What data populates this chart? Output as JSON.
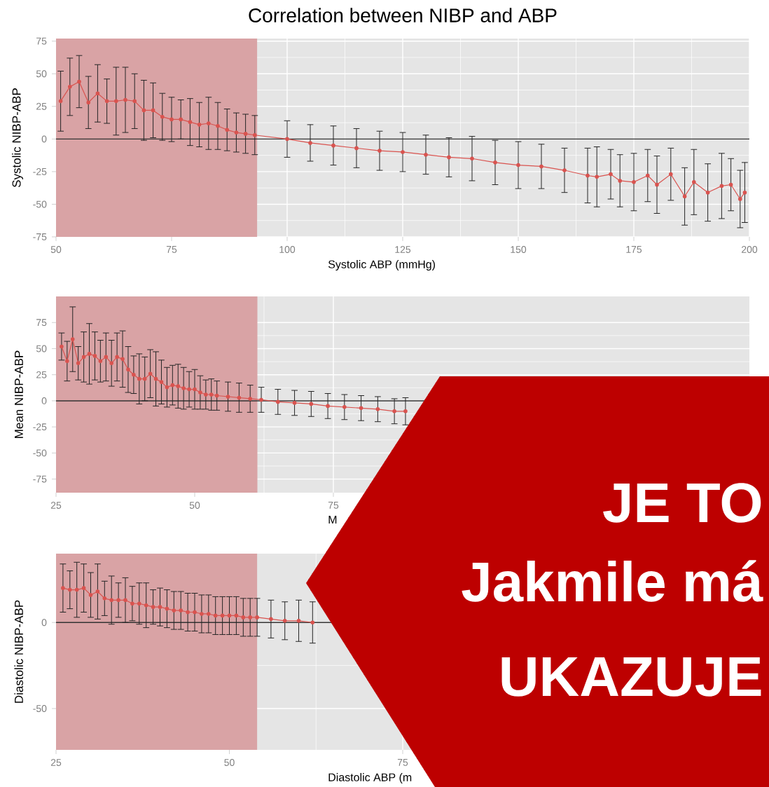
{
  "chart_data": [
    {
      "type": "line",
      "title": "Correlation between NIBP and ABP",
      "xlabel": "Systolic ABP (mmHg)",
      "ylabel": "Systolic NIBP-ABP",
      "xlim": [
        50,
        200
      ],
      "ylim": [
        -75,
        77
      ],
      "xticks": [
        50,
        75,
        100,
        125,
        150,
        175,
        200
      ],
      "yticks": [
        -75,
        -50,
        -25,
        0,
        25,
        50,
        75
      ],
      "grid": true,
      "marker": "circle",
      "ref_lines": [
        {
          "axis": "y",
          "value": 0,
          "color": "#333333"
        }
      ],
      "bands": [
        {
          "axis": "x",
          "from": 50,
          "to": 93.5,
          "color": "#d9a3a5"
        }
      ],
      "series": [
        {
          "color": "#d9534f",
          "x": [
            51,
            53,
            55,
            57,
            59,
            61,
            63,
            65,
            67,
            69,
            71,
            73,
            75,
            77,
            79,
            81,
            83,
            85,
            87,
            89,
            91,
            93,
            100,
            105,
            110,
            115,
            120,
            125,
            130,
            135,
            140,
            145,
            150,
            155,
            160,
            165,
            167,
            170,
            172,
            175,
            178,
            180,
            183,
            186,
            188,
            191,
            194,
            196,
            198,
            199
          ],
          "values": [
            29,
            40,
            44,
            28,
            35,
            29,
            29,
            30,
            29,
            22,
            22,
            17,
            15,
            15,
            13,
            11,
            12,
            10,
            7,
            5,
            4,
            3,
            0,
            -3,
            -5,
            -7,
            -9,
            -10,
            -12,
            -14,
            -15,
            -18,
            -20,
            -21,
            -24,
            -28,
            -29,
            -27,
            -32,
            -33,
            -28,
            -35,
            -27,
            -44,
            -33,
            -41,
            -36,
            -35,
            -46,
            -41
          ],
          "errors": [
            23,
            22,
            20,
            20,
            22,
            17,
            26,
            25,
            21,
            23,
            21,
            18,
            17,
            15,
            18,
            17,
            20,
            18,
            16,
            15,
            15,
            15,
            14,
            14,
            15,
            15,
            15,
            15,
            15,
            15,
            17,
            17,
            18,
            17,
            17,
            21,
            23,
            19,
            20,
            22,
            20,
            22,
            20,
            22,
            25,
            22,
            25,
            20,
            22,
            23
          ]
        }
      ]
    },
    {
      "type": "line",
      "xlabel": "M",
      "ylabel": "Mean NIBP-ABP",
      "xlim": [
        25,
        150
      ],
      "ylim": [
        -88,
        100
      ],
      "xticks": [
        25,
        50,
        75
      ],
      "yticks": [
        -75,
        -50,
        -25,
        0,
        25,
        50,
        75
      ],
      "grid": true,
      "marker": "circle",
      "ref_lines": [
        {
          "axis": "y",
          "value": 0,
          "color": "#333333"
        }
      ],
      "bands": [
        {
          "axis": "x",
          "from": 25,
          "to": 61.3,
          "color": "#d9a3a5"
        }
      ],
      "series": [
        {
          "color": "#d9534f",
          "x": [
            26,
            27,
            28,
            29,
            30,
            31,
            32,
            33,
            34,
            35,
            36,
            37,
            38,
            39,
            40,
            41,
            42,
            43,
            44,
            45,
            46,
            47,
            48,
            49,
            50,
            51,
            52,
            53,
            54,
            56,
            58,
            60,
            62,
            65,
            68,
            71,
            74,
            77,
            80,
            83,
            86,
            88
          ],
          "values": [
            52,
            38,
            59,
            36,
            42,
            45,
            43,
            38,
            42,
            36,
            42,
            40,
            30,
            25,
            21,
            21,
            26,
            21,
            18,
            13,
            15,
            14,
            12,
            11,
            11,
            8,
            6,
            6,
            5,
            4,
            3,
            2,
            1,
            -1,
            -2,
            -3,
            -5,
            -6,
            -7,
            -8,
            -10,
            -10
          ],
          "errors": [
            13,
            19,
            31,
            16,
            24,
            29,
            23,
            20,
            23,
            22,
            23,
            27,
            22,
            18,
            24,
            21,
            23,
            26,
            21,
            19,
            19,
            21,
            20,
            17,
            19,
            16,
            14,
            15,
            14,
            14,
            14,
            13,
            12,
            12,
            12,
            12,
            12,
            12,
            12,
            12,
            12,
            13
          ]
        }
      ]
    },
    {
      "type": "line",
      "xlabel": "Diastolic ABP (m",
      "ylabel": "Diastolic NIBP-ABP",
      "xlim": [
        25,
        125
      ],
      "ylim": [
        -74,
        40
      ],
      "xticks": [
        25,
        50,
        75
      ],
      "yticks": [
        -50,
        0
      ],
      "grid": true,
      "marker": "circle",
      "ref_lines": [
        {
          "axis": "y",
          "value": 0,
          "color": "#333333"
        }
      ],
      "bands": [
        {
          "axis": "x",
          "from": 25,
          "to": 54,
          "color": "#d9a3a5"
        }
      ],
      "series": [
        {
          "color": "#d9534f",
          "x": [
            26,
            27,
            28,
            29,
            30,
            31,
            32,
            33,
            34,
            35,
            36,
            37,
            38,
            39,
            40,
            41,
            42,
            43,
            44,
            45,
            46,
            47,
            48,
            49,
            50,
            51,
            52,
            53,
            54,
            56,
            58,
            60,
            62
          ],
          "values": [
            20,
            19,
            19,
            20,
            16,
            18,
            14,
            13,
            13,
            13,
            11,
            11,
            10,
            9,
            9,
            8,
            7,
            7,
            6,
            6,
            5,
            5,
            4,
            4,
            4,
            4,
            3,
            3,
            3,
            2,
            1,
            1,
            0
          ],
          "errors": [
            14,
            11,
            16,
            14,
            13,
            16,
            10,
            14,
            10,
            13,
            10,
            12,
            13,
            10,
            11,
            11,
            11,
            11,
            11,
            11,
            11,
            11,
            11,
            11,
            11,
            11,
            11,
            11,
            11,
            11,
            11,
            12,
            12
          ]
        }
      ]
    },
    {
      "type": "other",
      "annotations": [
        "JE TO",
        "Jakmile má",
        "UKAZUJE"
      ]
    }
  ]
}
